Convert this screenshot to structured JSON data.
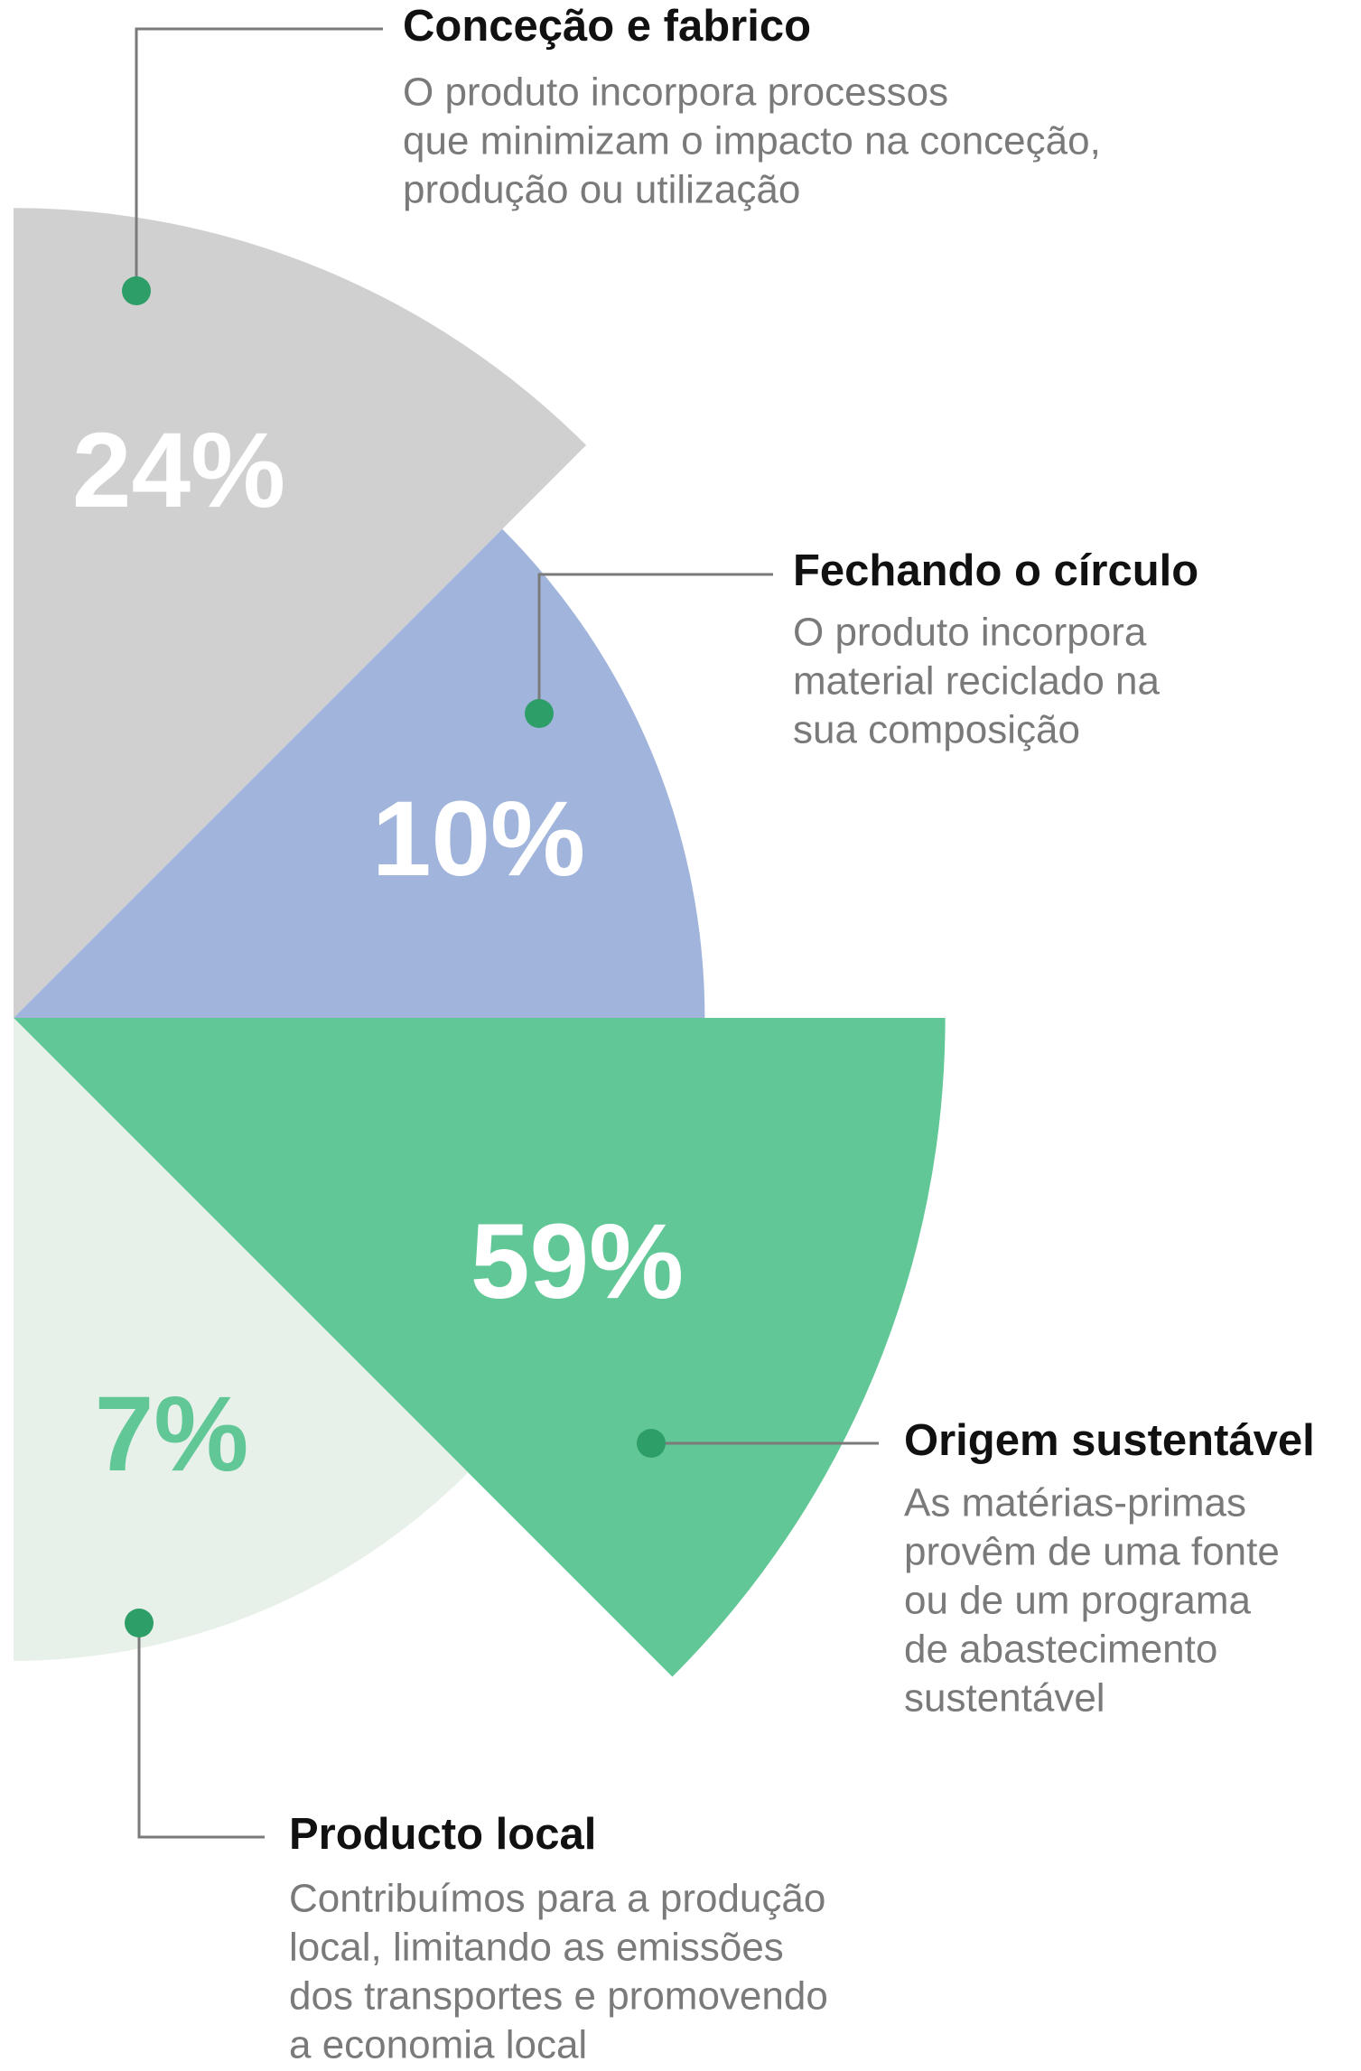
{
  "chart_data": {
    "type": "pie",
    "categories": [
      "Conceção e fabrico",
      "Fechando o círculo",
      "Origem sustentável",
      "Producto local"
    ],
    "descriptions": [
      [
        "O produto incorpora processos",
        "que minimizam o impacto na conceção,",
        "produção ou utilização"
      ],
      [
        "O produto incorpora",
        "material reciclado na",
        "sua composição"
      ],
      [
        "As matérias-primas",
        "provêm de uma fonte",
        "ou de um programa",
        "de abastecimento",
        "sustentável"
      ],
      [
        "Contribuímos para a produção",
        "local, limitando as emissões",
        "dos transportes e promovendo",
        "a economia local"
      ]
    ],
    "values": [
      24,
      10,
      59,
      7
    ],
    "value_labels": [
      "24%",
      "10%",
      "59%",
      "7%"
    ],
    "colors": [
      "#d0d0d0",
      "#a1b5dc",
      "#62c797",
      "#e7f1e9"
    ],
    "label_colors": [
      "#ffffff",
      "#ffffff",
      "#ffffff",
      "#62c797"
    ]
  }
}
